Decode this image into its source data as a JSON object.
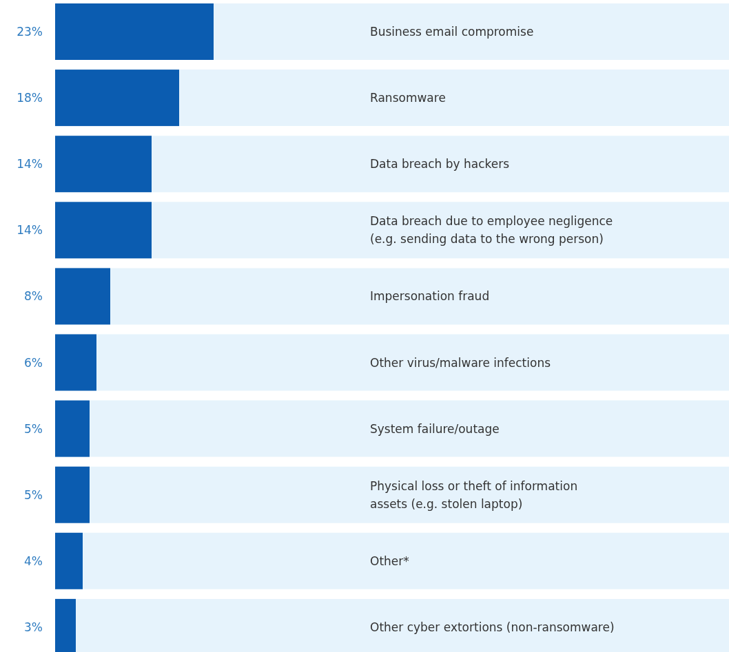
{
  "chart_data": {
    "type": "bar",
    "orientation": "horizontal",
    "categories": [
      "Business email compromise",
      "Ransomware",
      "Data breach by hackers",
      "Data breach due to employee negligence (e.g. sending data to the wrong person)",
      "Impersonation fraud",
      "Other virus/malware infections",
      "System failure/outage",
      "Physical loss or theft of information assets (e.g. stolen laptop)",
      "Other*",
      "Other cyber extortions (non-ransomware)"
    ],
    "values": [
      23,
      18,
      14,
      14,
      8,
      6,
      5,
      5,
      4,
      3
    ],
    "value_labels": [
      "23%",
      "18%",
      "14%",
      "14%",
      "8%",
      "6%",
      "5%",
      "5%",
      "4%",
      "3%"
    ],
    "color": "#0b5cb0"
  }
}
